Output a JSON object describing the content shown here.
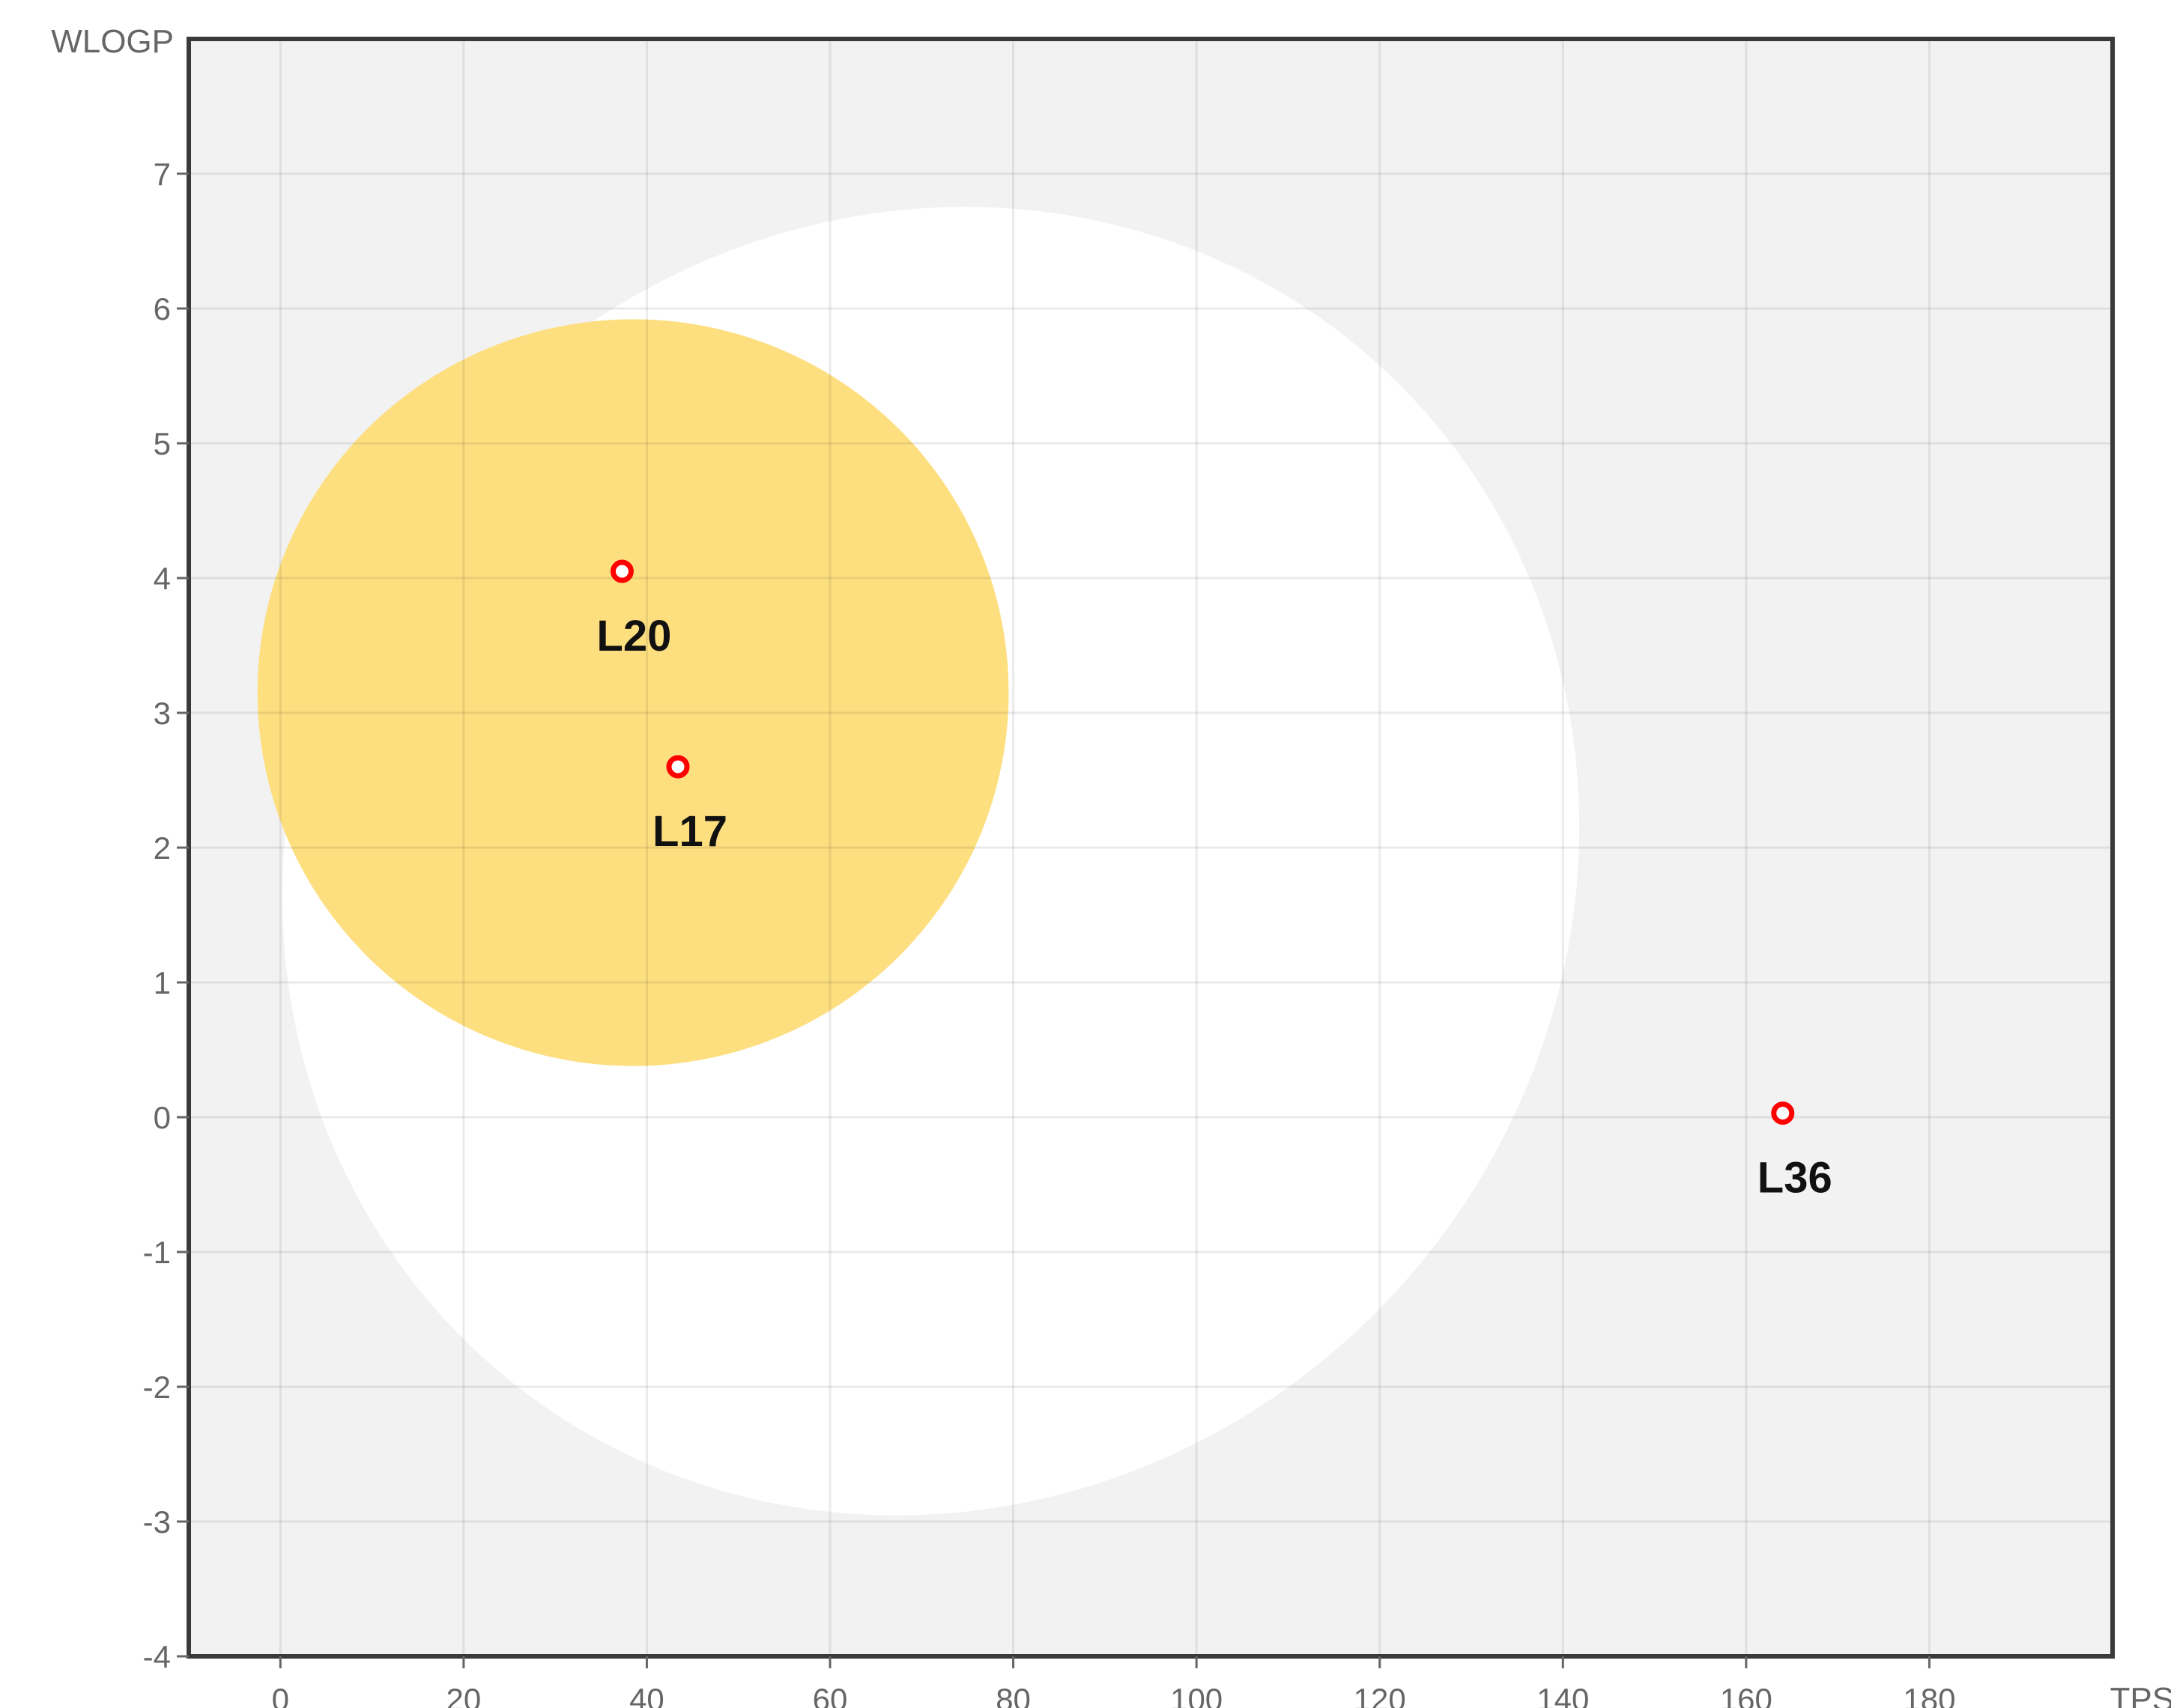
{
  "chart_data": {
    "type": "scatter",
    "xlabel": "TPSA",
    "ylabel": "WLOGP",
    "xlim": [
      -10,
      200
    ],
    "ylim": [
      -4,
      8
    ],
    "x_ticks": [
      0,
      20,
      40,
      60,
      80,
      100,
      120,
      140,
      160,
      180
    ],
    "y_ticks": [
      -4,
      -3,
      -2,
      -1,
      0,
      1,
      2,
      3,
      4,
      5,
      6,
      7
    ],
    "grid": true,
    "colors": {
      "plot_background": "#f2f2f2",
      "white_region": "#ffffff",
      "yolk_region": "#fddf80",
      "point_stroke": "#ff0000"
    },
    "regions": [
      {
        "role": "white",
        "center": [
          71,
          1.9
        ],
        "semi_axes": [
          73,
          4.7
        ],
        "rotation_deg": -50
      },
      {
        "role": "yolk",
        "center": [
          38.5,
          3.15
        ],
        "semi_axes": [
          41,
          2.77
        ],
        "rotation_deg": 0
      }
    ],
    "points": [
      {
        "label": "L20",
        "x": 37.3,
        "y": 4.05
      },
      {
        "label": "L17",
        "x": 43.4,
        "y": 2.6
      },
      {
        "label": "L36",
        "x": 164.0,
        "y": 0.03
      }
    ]
  }
}
